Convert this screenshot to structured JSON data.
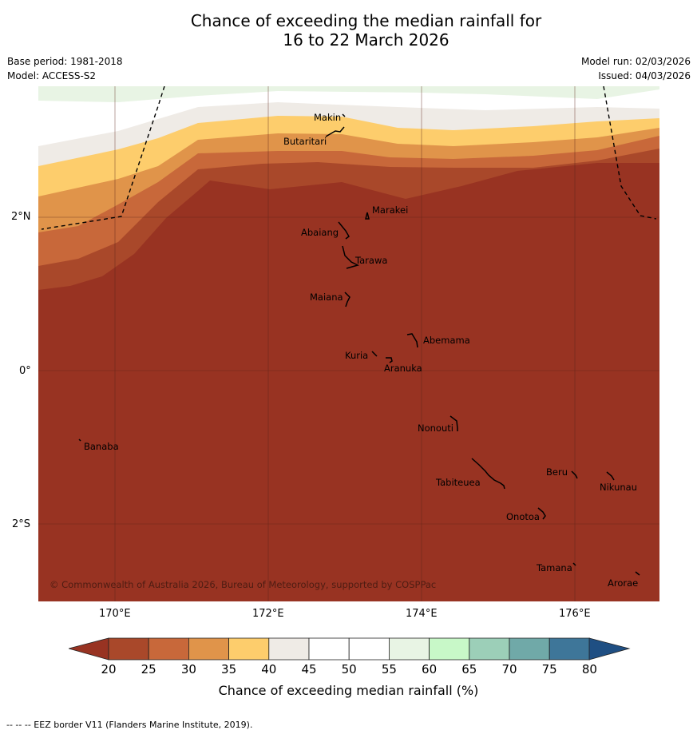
{
  "title": {
    "line1": "Chance of exceeding the median rainfall for",
    "line2": "16 to 22 March 2026"
  },
  "meta": {
    "base_period": "Base period: 1981-2018",
    "model": "Model: ACCESS-S2",
    "model_run": "Model run: 02/03/2026",
    "issued": "Issued: 04/03/2026"
  },
  "map": {
    "x_ticks": [
      "170°E",
      "172°E",
      "174°E",
      "176°E"
    ],
    "y_ticks": [
      "2°N",
      "0°",
      "2°S"
    ],
    "islands": [
      "Makin",
      "Butaritari",
      "Marakei",
      "Abaiang",
      "Tarawa",
      "Maiana",
      "Abemama",
      "Kuria",
      "Aranuka",
      "Nonouti",
      "Banaba",
      "Tabiteuea",
      "Beru",
      "Nikunau",
      "Onotoa",
      "Tamana",
      "Arorae"
    ],
    "copyright": "© Commonwealth of Australia 2026, Bureau of Meteorology, supported by COSPPac"
  },
  "legend": {
    "ticks": [
      "20",
      "25",
      "30",
      "35",
      "40",
      "45",
      "50",
      "55",
      "60",
      "65",
      "70",
      "75",
      "80"
    ],
    "colors": [
      "#a9482a",
      "#c8683a",
      "#e0944a",
      "#fdcd6c",
      "#efebe6",
      "#ffffff",
      "#ffffff",
      "#e8f4e4",
      "#c8f8c8",
      "#9ccfb8",
      "#70a9a8",
      "#3e7699"
    ],
    "under_color": "#983322",
    "over_color": "#1f4f83",
    "label": "Chance of exceeding median rainfall (%)"
  },
  "footnote": "--  --  -- EEZ border V11 (Flanders Marine Institute, 2019)."
}
